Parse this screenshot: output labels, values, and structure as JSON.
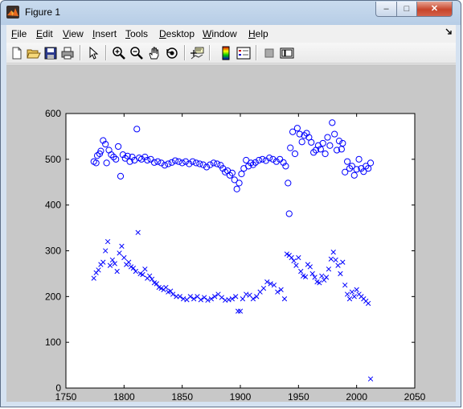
{
  "window": {
    "title": "Figure 1",
    "min_symbol": "–",
    "max_symbol": "□",
    "close_symbol": "✕"
  },
  "menu": [
    {
      "label": "File",
      "key": "F"
    },
    {
      "label": "Edit",
      "key": "E"
    },
    {
      "label": "View",
      "key": "V"
    },
    {
      "label": "Insert",
      "key": "I"
    },
    {
      "label": "Tools",
      "key": "T"
    },
    {
      "label": "Desktop",
      "key": "D"
    },
    {
      "label": "Window",
      "key": "W"
    },
    {
      "label": "Help",
      "key": "H"
    }
  ],
  "toolbar_icons": [
    "new-figure-icon",
    "open-file-icon",
    "save-icon",
    "print-icon",
    "edit-plot-arrow-icon",
    "zoom-in-icon",
    "zoom-out-icon",
    "pan-hand-icon",
    "rotate-3d-icon",
    "data-cursor-icon",
    "colorbar-icon",
    "legend-icon",
    "hide-plot-tools-icon",
    "show-plot-tools-icon"
  ],
  "chart_data": {
    "type": "scatter",
    "xlim": [
      1750,
      2050
    ],
    "ylim": [
      0,
      600
    ],
    "xticks": [
      1750,
      1800,
      1850,
      1900,
      1950,
      2000,
      2050
    ],
    "yticks": [
      0,
      100,
      200,
      300,
      400,
      500,
      600
    ],
    "grid": false,
    "series": [
      {
        "marker": "o",
        "color": "#0000ff",
        "points": [
          [
            1774,
            495
          ],
          [
            1776,
            492
          ],
          [
            1777,
            508
          ],
          [
            1779,
            512
          ],
          [
            1780,
            518
          ],
          [
            1782,
            541
          ],
          [
            1784,
            533
          ],
          [
            1785,
            492
          ],
          [
            1787,
            520
          ],
          [
            1789,
            510
          ],
          [
            1791,
            505
          ],
          [
            1793,
            500
          ],
          [
            1795,
            528
          ],
          [
            1797,
            463
          ],
          [
            1799,
            510
          ],
          [
            1801,
            502
          ],
          [
            1803,
            507
          ],
          [
            1805,
            495
          ],
          [
            1807,
            505
          ],
          [
            1809,
            498
          ],
          [
            1811,
            566
          ],
          [
            1813,
            503
          ],
          [
            1815,
            500
          ],
          [
            1818,
            505
          ],
          [
            1820,
            498
          ],
          [
            1823,
            500
          ],
          [
            1826,
            493
          ],
          [
            1829,
            495
          ],
          [
            1832,
            492
          ],
          [
            1835,
            487
          ],
          [
            1838,
            490
          ],
          [
            1841,
            493
          ],
          [
            1844,
            497
          ],
          [
            1847,
            495
          ],
          [
            1850,
            492
          ],
          [
            1853,
            495
          ],
          [
            1856,
            490
          ],
          [
            1859,
            495
          ],
          [
            1862,
            492
          ],
          [
            1865,
            490
          ],
          [
            1868,
            488
          ],
          [
            1871,
            483
          ],
          [
            1874,
            488
          ],
          [
            1877,
            492
          ],
          [
            1880,
            490
          ],
          [
            1883,
            487
          ],
          [
            1885,
            480
          ],
          [
            1887,
            472
          ],
          [
            1889,
            475
          ],
          [
            1891,
            465
          ],
          [
            1893,
            470
          ],
          [
            1895,
            455
          ],
          [
            1897,
            435
          ],
          [
            1899,
            448
          ],
          [
            1901,
            468
          ],
          [
            1903,
            480
          ],
          [
            1905,
            498
          ],
          [
            1907,
            485
          ],
          [
            1909,
            492
          ],
          [
            1911,
            488
          ],
          [
            1913,
            493
          ],
          [
            1916,
            498
          ],
          [
            1919,
            500
          ],
          [
            1922,
            497
          ],
          [
            1925,
            503
          ],
          [
            1928,
            500
          ],
          [
            1931,
            495
          ],
          [
            1934,
            500
          ],
          [
            1937,
            493
          ],
          [
            1939,
            485
          ],
          [
            1941,
            448
          ],
          [
            1942,
            381
          ],
          [
            1943,
            525
          ],
          [
            1945,
            560
          ],
          [
            1947,
            512
          ],
          [
            1949,
            568
          ],
          [
            1951,
            555
          ],
          [
            1953,
            538
          ],
          [
            1955,
            552
          ],
          [
            1957,
            557
          ],
          [
            1959,
            548
          ],
          [
            1961,
            537
          ],
          [
            1963,
            515
          ],
          [
            1965,
            520
          ],
          [
            1967,
            530
          ],
          [
            1969,
            522
          ],
          [
            1971,
            535
          ],
          [
            1973,
            512
          ],
          [
            1975,
            548
          ],
          [
            1977,
            530
          ],
          [
            1979,
            580
          ],
          [
            1981,
            555
          ],
          [
            1983,
            520
          ],
          [
            1985,
            540
          ],
          [
            1987,
            522
          ],
          [
            1988,
            535
          ],
          [
            1990,
            472
          ],
          [
            1992,
            495
          ],
          [
            1994,
            480
          ],
          [
            1996,
            485
          ],
          [
            1998,
            465
          ],
          [
            2000,
            478
          ],
          [
            2002,
            500
          ],
          [
            2004,
            480
          ],
          [
            2006,
            473
          ],
          [
            2008,
            485
          ],
          [
            2010,
            480
          ],
          [
            2012,
            492
          ]
        ]
      },
      {
        "marker": "x",
        "color": "#0000ff",
        "points": [
          [
            1774,
            240
          ],
          [
            1776,
            252
          ],
          [
            1778,
            258
          ],
          [
            1780,
            270
          ],
          [
            1782,
            275
          ],
          [
            1784,
            300
          ],
          [
            1786,
            320
          ],
          [
            1788,
            268
          ],
          [
            1790,
            280
          ],
          [
            1792,
            272
          ],
          [
            1794,
            255
          ],
          [
            1796,
            295
          ],
          [
            1798,
            310
          ],
          [
            1800,
            285
          ],
          [
            1802,
            270
          ],
          [
            1804,
            275
          ],
          [
            1806,
            265
          ],
          [
            1808,
            262
          ],
          [
            1810,
            255
          ],
          [
            1812,
            340
          ],
          [
            1814,
            250
          ],
          [
            1816,
            248
          ],
          [
            1818,
            260
          ],
          [
            1820,
            240
          ],
          [
            1822,
            245
          ],
          [
            1824,
            238
          ],
          [
            1826,
            230
          ],
          [
            1828,
            228
          ],
          [
            1830,
            220
          ],
          [
            1832,
            218
          ],
          [
            1834,
            215
          ],
          [
            1836,
            220
          ],
          [
            1838,
            210
          ],
          [
            1840,
            212
          ],
          [
            1842,
            205
          ],
          [
            1845,
            200
          ],
          [
            1848,
            200
          ],
          [
            1851,
            195
          ],
          [
            1854,
            193
          ],
          [
            1857,
            200
          ],
          [
            1860,
            195
          ],
          [
            1863,
            200
          ],
          [
            1866,
            193
          ],
          [
            1869,
            198
          ],
          [
            1872,
            192
          ],
          [
            1875,
            195
          ],
          [
            1878,
            200
          ],
          [
            1881,
            205
          ],
          [
            1884,
            198
          ],
          [
            1887,
            192
          ],
          [
            1890,
            193
          ],
          [
            1893,
            195
          ],
          [
            1896,
            200
          ],
          [
            1898,
            168
          ],
          [
            1900,
            168
          ],
          [
            1902,
            195
          ],
          [
            1905,
            205
          ],
          [
            1908,
            203
          ],
          [
            1911,
            195
          ],
          [
            1914,
            200
          ],
          [
            1917,
            210
          ],
          [
            1920,
            218
          ],
          [
            1923,
            232
          ],
          [
            1926,
            228
          ],
          [
            1929,
            225
          ],
          [
            1932,
            210
          ],
          [
            1935,
            215
          ],
          [
            1938,
            195
          ],
          [
            1940,
            293
          ],
          [
            1942,
            290
          ],
          [
            1944,
            285
          ],
          [
            1946,
            278
          ],
          [
            1948,
            268
          ],
          [
            1950,
            285
          ],
          [
            1952,
            255
          ],
          [
            1954,
            245
          ],
          [
            1956,
            243
          ],
          [
            1958,
            270
          ],
          [
            1960,
            265
          ],
          [
            1962,
            250
          ],
          [
            1964,
            242
          ],
          [
            1966,
            232
          ],
          [
            1968,
            230
          ],
          [
            1970,
            245
          ],
          [
            1972,
            236
          ],
          [
            1974,
            242
          ],
          [
            1976,
            260
          ],
          [
            1978,
            282
          ],
          [
            1980,
            297
          ],
          [
            1982,
            280
          ],
          [
            1984,
            268
          ],
          [
            1986,
            250
          ],
          [
            1988,
            275
          ],
          [
            1990,
            225
          ],
          [
            1992,
            205
          ],
          [
            1994,
            195
          ],
          [
            1996,
            210
          ],
          [
            1998,
            200
          ],
          [
            2000,
            215
          ],
          [
            2002,
            205
          ],
          [
            2004,
            200
          ],
          [
            2006,
            195
          ],
          [
            2008,
            190
          ],
          [
            2010,
            185
          ],
          [
            2012,
            20
          ]
        ]
      }
    ]
  }
}
